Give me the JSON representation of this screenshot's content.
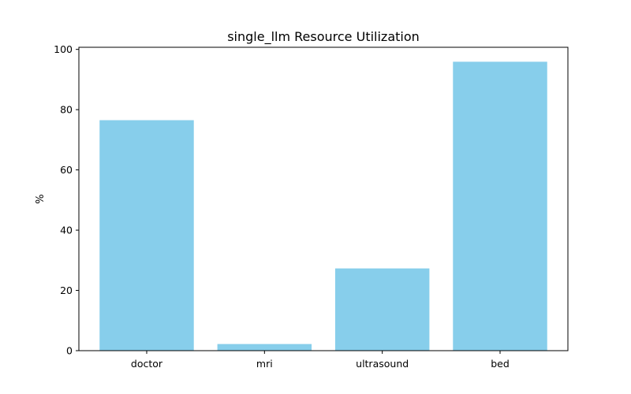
{
  "chart_data": {
    "type": "bar",
    "title": "single_llm Resource Utilization",
    "xlabel": "",
    "ylabel": "%",
    "categories": [
      "doctor",
      "mri",
      "ultrasound",
      "bed"
    ],
    "values": [
      76.5,
      2.2,
      27.3,
      95.9
    ],
    "ylim": [
      0,
      100.7
    ],
    "yticks": [
      0,
      20,
      40,
      60,
      80,
      100
    ],
    "bar_color": "#87ceeb",
    "grid": false,
    "legend": "none"
  }
}
